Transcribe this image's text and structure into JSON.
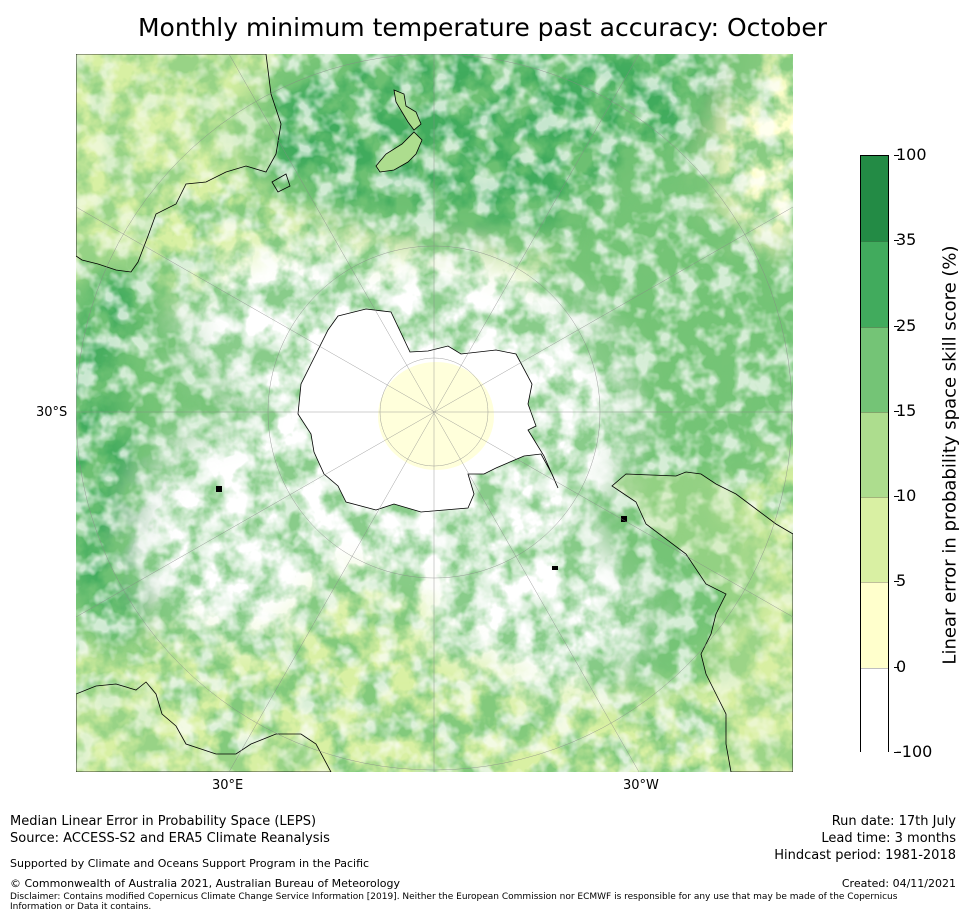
{
  "title": "Monthly minimum temperature past accuracy: October",
  "map": {
    "projection": "south-polar-stereographic",
    "center": "South Pole",
    "coastline_color": "#000000",
    "graticule_color": "#888888",
    "lat_label": "30°S",
    "lon_labels": {
      "left": "30°E",
      "right": "30°W"
    }
  },
  "colorbar": {
    "label": "Linear error in probability space skill score (%)",
    "ticks": [
      "100",
      "35",
      "25",
      "15",
      "10",
      "5",
      "0",
      "-100"
    ],
    "bins": [
      {
        "range": [
          35,
          100
        ],
        "color": "#238b45"
      },
      {
        "range": [
          25,
          35
        ],
        "color": "#41ab5d"
      },
      {
        "range": [
          15,
          25
        ],
        "color": "#74c476"
      },
      {
        "range": [
          10,
          15
        ],
        "color": "#addd8e"
      },
      {
        "range": [
          5,
          10
        ],
        "color": "#d9f0a3"
      },
      {
        "range": [
          0,
          5
        ],
        "color": "#ffffcc"
      },
      {
        "range": [
          -100,
          0
        ],
        "color": "#ffffff"
      }
    ]
  },
  "footer": {
    "left_line1": "Median Linear Error in Probability Space (LEPS)",
    "left_line2": "Source: ACCESS-S2 and ERA5 Climate Reanalysis",
    "supported": "Supported by Climate and Oceans Support Program in the Pacific",
    "copyright": "© Commonwealth of Australia 2021, Australian Bureau of Meteorology",
    "disclaimer_line1": "Disclaimer: Contains modified Copernicus Climate Change Service Information [2019]. Neither the European Commission nor ECMWF is responsible for any use that may be made of the Copernicus",
    "disclaimer_line2": "Information or Data it contains.",
    "run_date": "Run date: 17th July",
    "lead_time": "Lead time: 3 months",
    "hindcast": "Hindcast period: 1981-2018",
    "created": "Created: 04/11/2021"
  }
}
